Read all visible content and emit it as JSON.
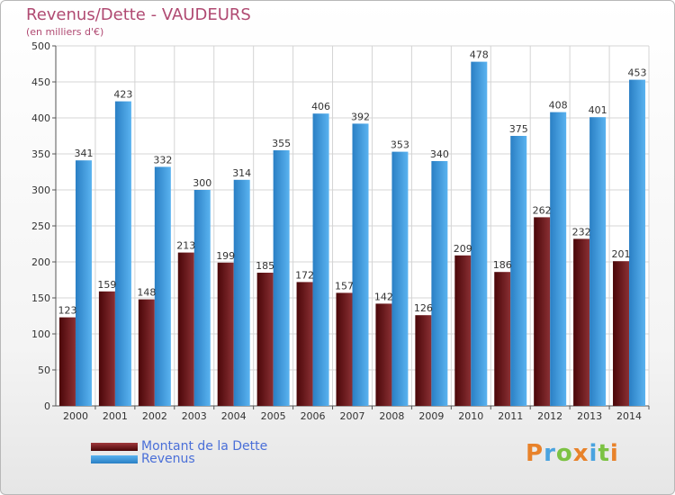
{
  "header": {
    "title": "Revenus/Dette - VAUDEURS",
    "subtitle": "(en milliers d'€)"
  },
  "logo": {
    "text": "Proxiti",
    "colors": [
      "#e8822a",
      "#4aa3df",
      "#7cc243",
      "#e8822a",
      "#4aa3df",
      "#7cc243",
      "#e8822a"
    ]
  },
  "chart_data": {
    "type": "bar",
    "title": "Revenus/Dette - VAUDEURS",
    "subtitle": "(en milliers d'€)",
    "xlabel": "",
    "ylabel": "",
    "ylim": [
      0,
      500
    ],
    "yticks": [
      0,
      50,
      100,
      150,
      200,
      250,
      300,
      350,
      400,
      450,
      500
    ],
    "grid": true,
    "legend_position": "bottom-left",
    "categories": [
      "2000",
      "2001",
      "2002",
      "2003",
      "2004",
      "2005",
      "2006",
      "2007",
      "2008",
      "2009",
      "2010",
      "2011",
      "2012",
      "2013",
      "2014"
    ],
    "series": [
      {
        "name": "Montant de la Dette",
        "color": "#7a2a2e",
        "values": [
          123,
          159,
          148,
          213,
          199,
          185,
          172,
          157,
          142,
          126,
          209,
          186,
          262,
          232,
          201
        ]
      },
      {
        "name": "Revenus",
        "color": "#4aa3e6",
        "values": [
          341,
          423,
          332,
          300,
          314,
          355,
          406,
          392,
          353,
          340,
          478,
          375,
          408,
          401,
          453
        ]
      }
    ]
  }
}
